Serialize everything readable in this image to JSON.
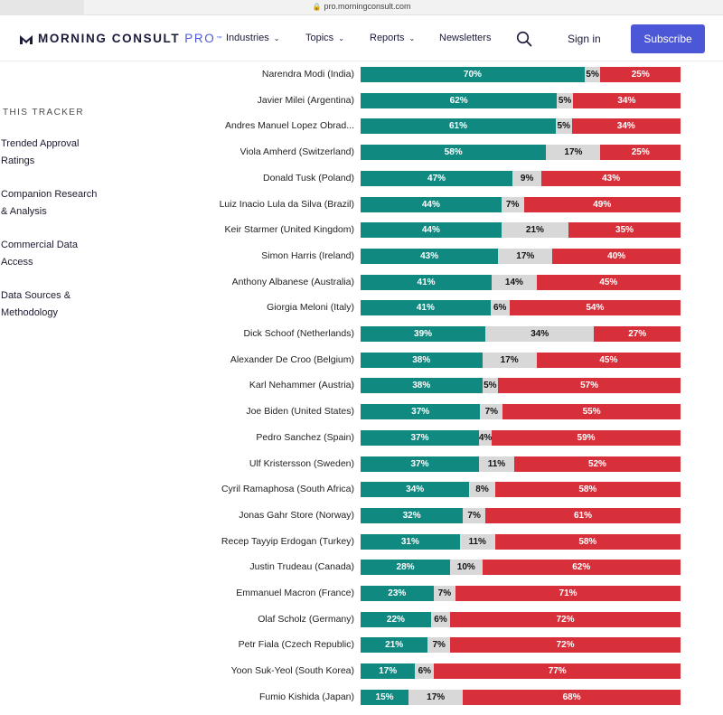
{
  "browser": {
    "url": "pro.morningconsult.com"
  },
  "header": {
    "logo_main": "MORNING CONSULT",
    "logo_pro": "PRO",
    "logo_tm": "™",
    "nav": [
      {
        "label": "Industries",
        "icon": "chevron-down-icon"
      },
      {
        "label": "Topics",
        "icon": "chevron-down-icon"
      },
      {
        "label": "Reports",
        "icon": "chevron-down-icon"
      },
      {
        "label": "Newsletters"
      }
    ],
    "search_icon": "search-icon",
    "signin_label": "Sign in",
    "subscribe_label": "Subscribe"
  },
  "sidebar": {
    "heading": "THIS TRACKER",
    "items": [
      {
        "line1": "Trended Approval",
        "line2": "Ratings"
      },
      {
        "line1": "Companion Research",
        "line2": "& Analysis"
      },
      {
        "line1": "Commercial Data",
        "line2": "Access"
      },
      {
        "line1": "Data Sources &",
        "line2": "Methodology"
      }
    ]
  },
  "colors": {
    "approve": "#108981",
    "neutral": "#d8d8d8",
    "disapprove": "#d8303a",
    "brand": "#4b57d6"
  },
  "chart_data": {
    "type": "bar",
    "orientation": "horizontal",
    "stacked": true,
    "categories": [
      "Narendra Modi (India)",
      "Javier Milei (Argentina)",
      "Andres Manuel Lopez Obrad...",
      "Viola Amherd (Switzerland)",
      "Donald Tusk (Poland)",
      "Luiz Inacio Lula da Silva (Brazil)",
      "Keir Starmer (United Kingdom)",
      "Simon Harris (Ireland)",
      "Anthony Albanese (Australia)",
      "Giorgia Meloni (Italy)",
      "Dick Schoof (Netherlands)",
      "Alexander De Croo (Belgium)",
      "Karl Nehammer (Austria)",
      "Joe Biden (United States)",
      "Pedro Sanchez (Spain)",
      "Ulf Kristersson (Sweden)",
      "Cyril Ramaphosa (South Africa)",
      "Jonas Gahr Store (Norway)",
      "Recep Tayyip Erdogan (Turkey)",
      "Justin Trudeau (Canada)",
      "Emmanuel Macron (France)",
      "Olaf Scholz (Germany)",
      "Petr Fiala (Czech Republic)",
      "Yoon Suk-Yeol (South Korea)",
      "Fumio Kishida (Japan)"
    ],
    "series": [
      {
        "values": [
          70,
          62,
          61,
          58,
          47,
          44,
          44,
          43,
          41,
          41,
          39,
          38,
          38,
          37,
          37,
          37,
          34,
          32,
          31,
          28,
          23,
          22,
          21,
          17,
          15
        ]
      },
      {
        "values": [
          5,
          5,
          5,
          17,
          9,
          7,
          21,
          17,
          14,
          6,
          34,
          17,
          5,
          7,
          4,
          11,
          8,
          7,
          11,
          10,
          7,
          6,
          7,
          6,
          17
        ]
      },
      {
        "values": [
          25,
          34,
          34,
          25,
          43,
          49,
          35,
          40,
          45,
          54,
          27,
          45,
          57,
          55,
          59,
          52,
          58,
          61,
          58,
          62,
          71,
          72,
          72,
          77,
          68
        ]
      }
    ],
    "value_suffix": "%",
    "xlim": [
      0,
      100
    ]
  }
}
